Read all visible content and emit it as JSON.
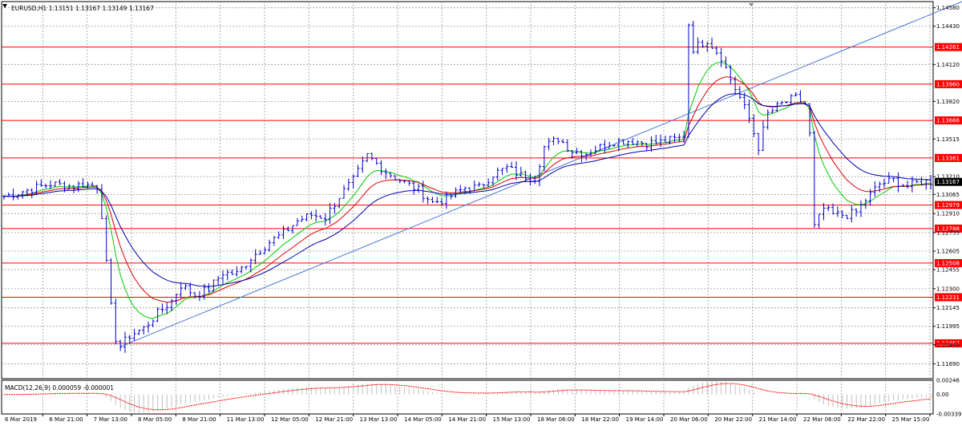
{
  "chart_data": [
    {
      "type": "line",
      "header": {
        "symbol": "EURUSD,H1",
        "ohlc": "1.13151 1.13167 1.13149 1.13167",
        "text": "EURUSD,H1  1.13151 1.13167 1.13149 1.13167"
      },
      "ylim": [
        1.1157,
        1.1463
      ],
      "y_ticks": [
        "1.14580",
        "1.14430",
        "1.14120",
        "1.13820",
        "1.13515",
        "1.13210",
        "1.13065",
        "1.12910",
        "1.12755",
        "1.12605",
        "1.12455",
        "1.12300",
        "1.12145",
        "1.11995",
        "1.11845",
        "1.11690"
      ],
      "x_ticks": [
        "6 Mar 2019",
        "6 Mar 21:00",
        "7 Mar 13:00",
        "8 Mar 05:00",
        "8 Mar 21:00",
        "11 Mar 13:00",
        "12 Mar 05:00",
        "12 Mar 21:00",
        "13 Mar 13:00",
        "14 Mar 05:00",
        "14 Mar 21:00",
        "15 Mar 13:00",
        "18 Mar 06:00",
        "18 Mar 22:00",
        "19 Mar 14:00",
        "20 Mar 06:00",
        "20 Mar 22:00",
        "21 Mar 14:00",
        "22 Mar 06:00",
        "22 Mar 22:00",
        "25 Mar 15:00"
      ],
      "current_price": "1.13167",
      "levels": [
        {
          "value": 1.14261,
          "label": "1.14261",
          "color": "#ff0000"
        },
        {
          "value": 1.1396,
          "label": "1.13960",
          "color": "#ff0000"
        },
        {
          "value": 1.13666,
          "label": "1.13666",
          "color": "#ff0000"
        },
        {
          "value": 1.13361,
          "label": "1.13361",
          "color": "#ff0000"
        },
        {
          "value": 1.12979,
          "label": "1.12979",
          "color": "#ff0000"
        },
        {
          "value": 1.12788,
          "label": "1.12788",
          "color": "#ff0000"
        },
        {
          "value": 1.12508,
          "label": "1.12508",
          "color": "#ff0000"
        },
        {
          "value": 1.12231,
          "label": "1.12231",
          "color": "#ff0000"
        },
        {
          "value": 1.11857,
          "label": "1.11857",
          "color": "#ff0000"
        }
      ],
      "price_path": [
        [
          0,
          1.1305
        ],
        [
          5,
          1.131
        ],
        [
          10,
          1.1315
        ],
        [
          15,
          1.1313
        ],
        [
          17,
          1.1315
        ],
        [
          20,
          1.1313
        ],
        [
          21,
          1.129
        ],
        [
          22,
          1.125
        ],
        [
          23,
          1.1215
        ],
        [
          24,
          1.119
        ],
        [
          25,
          1.1183
        ],
        [
          27,
          1.1192
        ],
        [
          30,
          1.1198
        ],
        [
          33,
          1.121
        ],
        [
          36,
          1.122
        ],
        [
          38,
          1.1233
        ],
        [
          41,
          1.1225
        ],
        [
          44,
          1.123
        ],
        [
          47,
          1.1243
        ],
        [
          50,
          1.1242
        ],
        [
          53,
          1.1255
        ],
        [
          57,
          1.1268
        ],
        [
          60,
          1.1275
        ],
        [
          63,
          1.1285
        ],
        [
          66,
          1.129
        ],
        [
          69,
          1.1288
        ],
        [
          72,
          1.1305
        ],
        [
          75,
          1.1318
        ],
        [
          78,
          1.1338
        ],
        [
          82,
          1.1325
        ],
        [
          85,
          1.1318
        ],
        [
          89,
          1.131
        ],
        [
          92,
          1.13
        ],
        [
          95,
          1.1303
        ],
        [
          99,
          1.1312
        ],
        [
          102,
          1.1312
        ],
        [
          105,
          1.1323
        ],
        [
          108,
          1.1328
        ],
        [
          111,
          1.1322
        ],
        [
          114,
          1.132
        ],
        [
          116,
          1.1345
        ],
        [
          119,
          1.1352
        ],
        [
          122,
          1.1342
        ],
        [
          125,
          1.134
        ],
        [
          128,
          1.1345
        ],
        [
          131,
          1.135
        ],
        [
          135,
          1.135
        ],
        [
          138,
          1.1348
        ],
        [
          141,
          1.1349
        ],
        [
          145,
          1.1352
        ],
        [
          146,
          1.1355
        ],
        [
          147,
          1.1445
        ],
        [
          148,
          1.1425
        ],
        [
          151,
          1.1432
        ],
        [
          154,
          1.1418
        ],
        [
          156,
          1.14
        ],
        [
          158,
          1.1385
        ],
        [
          160,
          1.1368
        ],
        [
          162,
          1.1345
        ],
        [
          164,
          1.1372
        ],
        [
          167,
          1.138
        ],
        [
          170,
          1.1385
        ],
        [
          172,
          1.138
        ],
        [
          173,
          1.1355
        ],
        [
          174,
          1.128
        ],
        [
          176,
          1.1295
        ],
        [
          178,
          1.129
        ],
        [
          181,
          1.129
        ],
        [
          183,
          1.1292
        ],
        [
          185,
          1.1302
        ],
        [
          188,
          1.1315
        ],
        [
          191,
          1.1318
        ],
        [
          194,
          1.1313
        ],
        [
          197,
          1.1317
        ],
        [
          199,
          1.1317
        ]
      ],
      "series": [
        {
          "name": "",
          "color": "#0000cc",
          "role": "price"
        },
        {
          "name": "",
          "color": "#00cc00",
          "role": "fast moving average"
        },
        {
          "name": "",
          "color": "#dd0000",
          "role": "medium moving average"
        },
        {
          "name": "",
          "color": "#0000aa",
          "role": "slow moving average"
        }
      ],
      "trendline": {
        "color": "#4a74d4",
        "points": [
          [
            25,
            1.1183
          ],
          [
            207,
            1.1465
          ]
        ]
      }
    },
    {
      "type": "bar",
      "label": "MACD(12,26,9) 0.000059 -0.000001",
      "ylim": [
        -0.00339,
        0.00247
      ],
      "y_ticks": [
        "0.00246",
        "0.00",
        "-0.00339"
      ],
      "signal_color": "#ff0000",
      "histogram_color": "#c0c0c0"
    }
  ]
}
